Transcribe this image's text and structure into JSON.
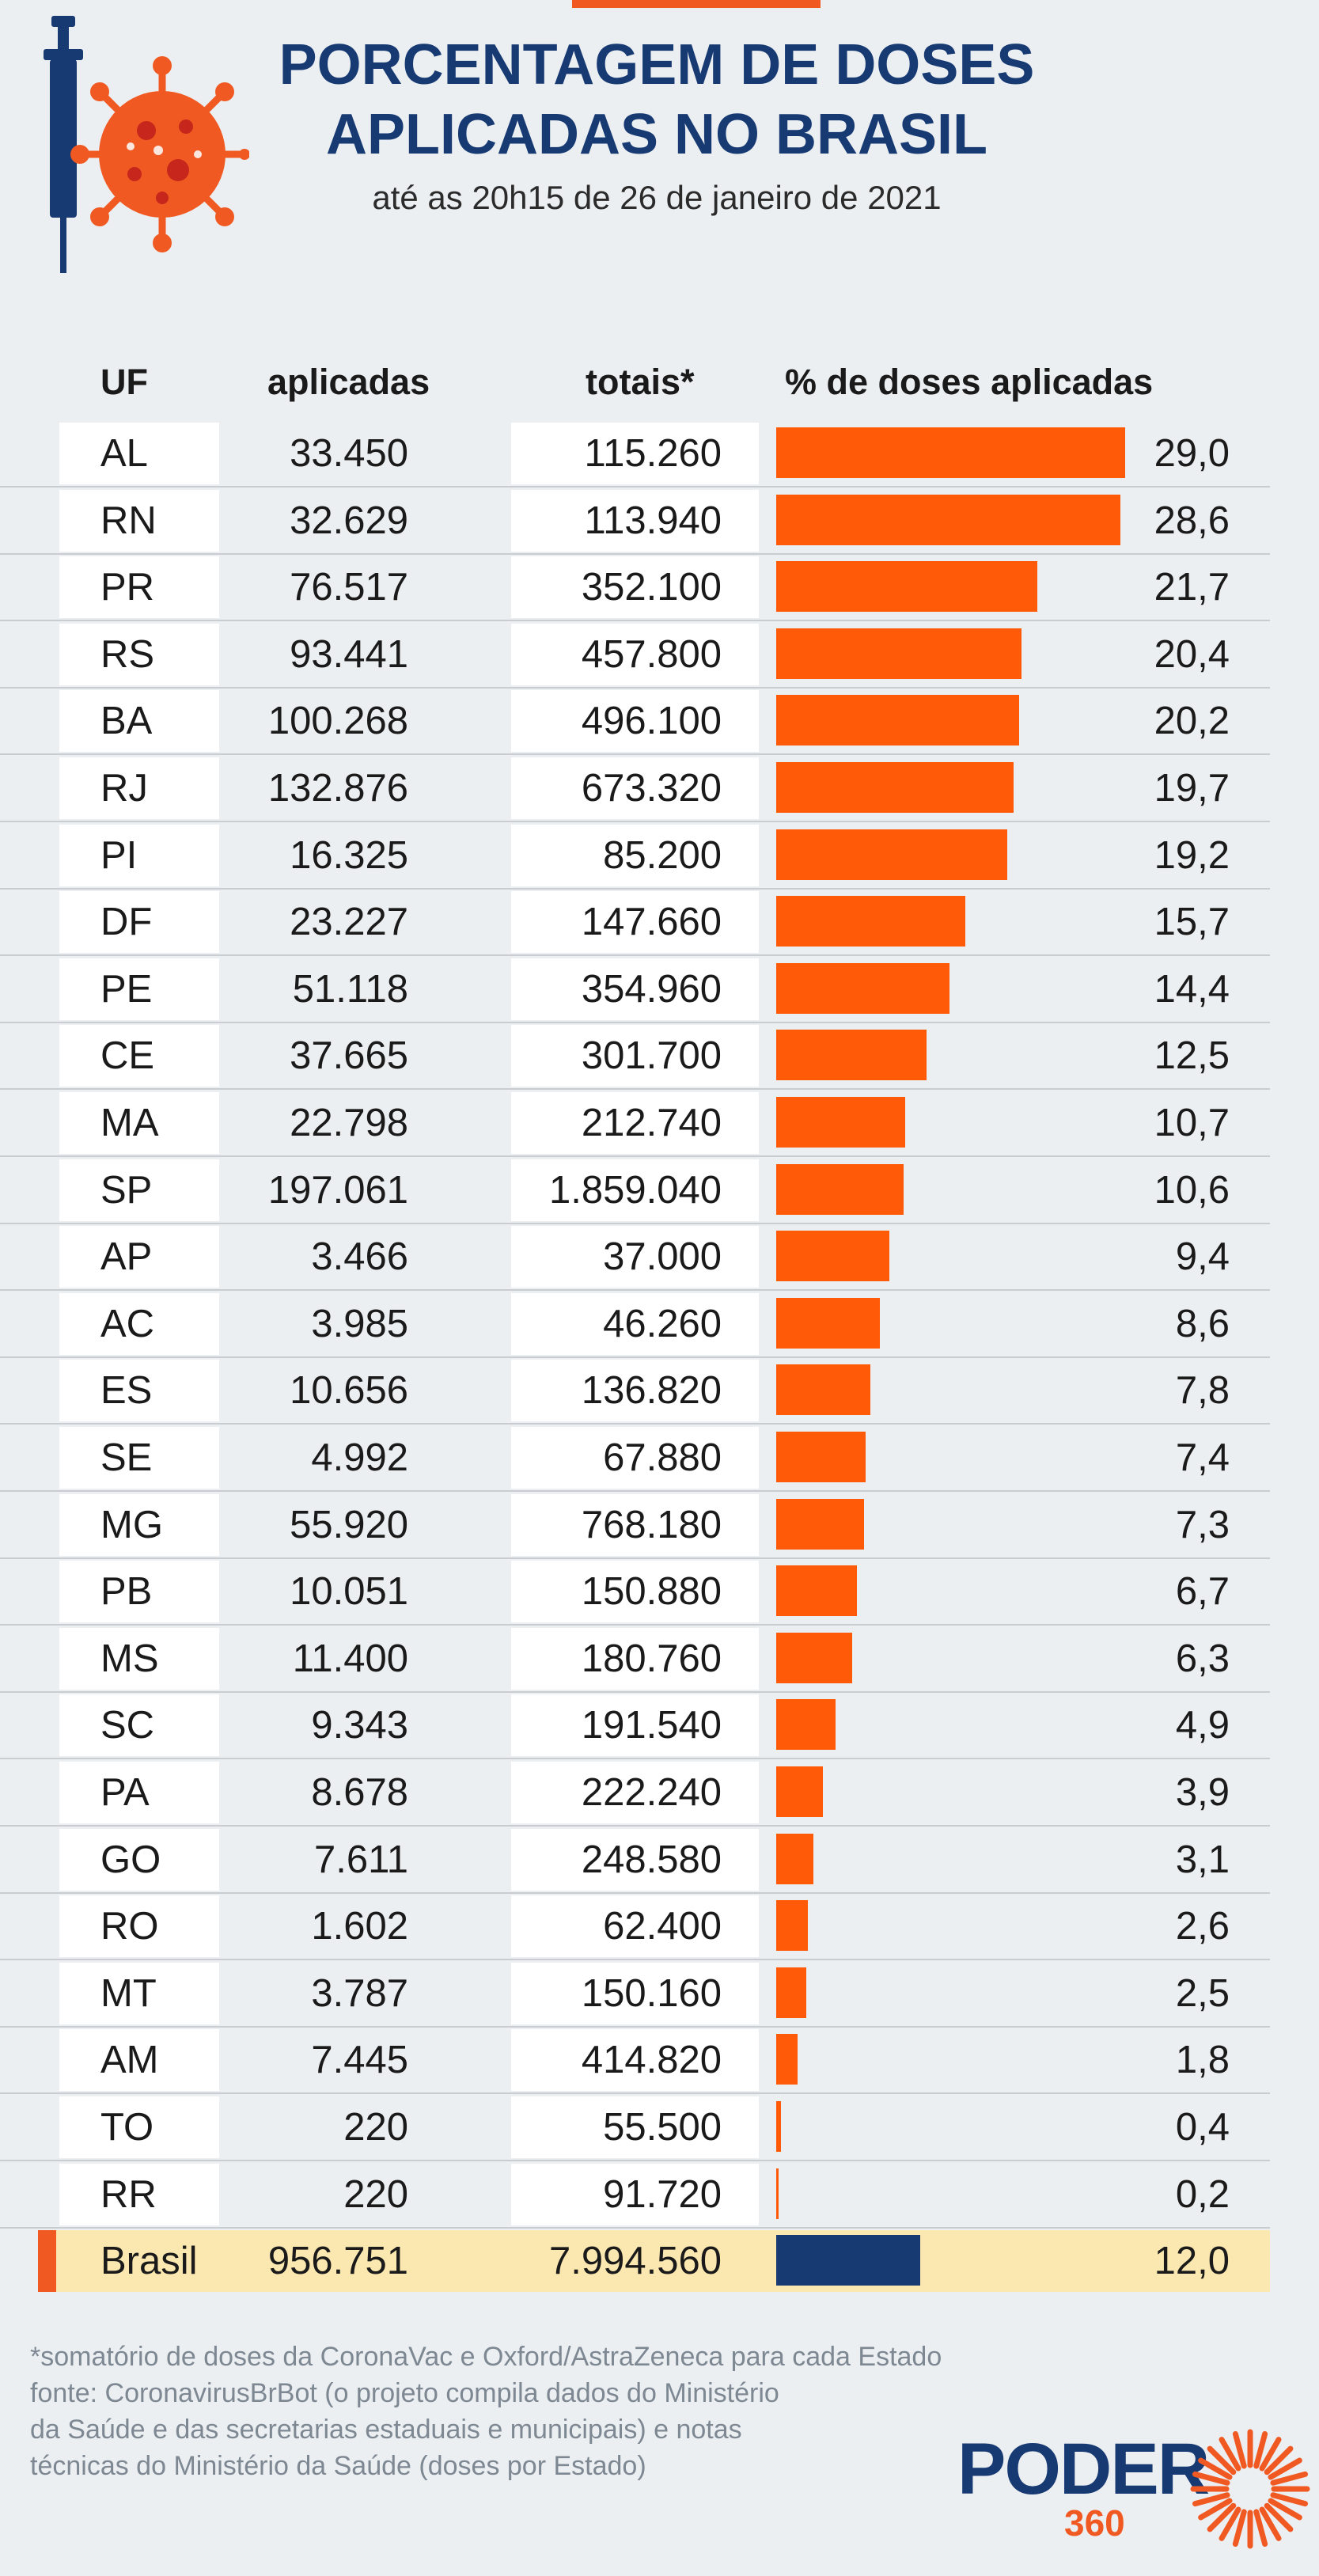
{
  "title": {
    "line1": "PORCENTAGEM DE DOSES",
    "line2": "APLICADAS NO BRASIL",
    "subtitle": "até as 20h15 de 26 de janeiro de 2021"
  },
  "colors": {
    "accent": "#f05a22",
    "bar": "#fe5a08",
    "total_bar": "#173a73",
    "title": "#173a73",
    "highlight": "#fbe8b0"
  },
  "icons": [
    "syringe-icon",
    "virus-icon",
    "sunburst-icon"
  ],
  "chart_data": {
    "type": "bar",
    "orientation": "horizontal",
    "columns": {
      "uf": "UF",
      "aplicadas": "aplicadas",
      "totais": "totais*",
      "pct": "% de doses aplicadas"
    },
    "xlim": [
      0,
      29
    ],
    "rows": [
      {
        "uf": "AL",
        "aplicadas": "33.450",
        "totais": "115.260",
        "pct": 29.0,
        "pct_label": "29,0"
      },
      {
        "uf": "RN",
        "aplicadas": "32.629",
        "totais": "113.940",
        "pct": 28.6,
        "pct_label": "28,6"
      },
      {
        "uf": "PR",
        "aplicadas": "76.517",
        "totais": "352.100",
        "pct": 21.7,
        "pct_label": "21,7"
      },
      {
        "uf": "RS",
        "aplicadas": "93.441",
        "totais": "457.800",
        "pct": 20.4,
        "pct_label": "20,4"
      },
      {
        "uf": "BA",
        "aplicadas": "100.268",
        "totais": "496.100",
        "pct": 20.2,
        "pct_label": "20,2"
      },
      {
        "uf": "RJ",
        "aplicadas": "132.876",
        "totais": "673.320",
        "pct": 19.7,
        "pct_label": "19,7"
      },
      {
        "uf": "PI",
        "aplicadas": "16.325",
        "totais": "85.200",
        "pct": 19.2,
        "pct_label": "19,2"
      },
      {
        "uf": "DF",
        "aplicadas": "23.227",
        "totais": "147.660",
        "pct": 15.7,
        "pct_label": "15,7"
      },
      {
        "uf": "PE",
        "aplicadas": "51.118",
        "totais": "354.960",
        "pct": 14.4,
        "pct_label": "14,4"
      },
      {
        "uf": "CE",
        "aplicadas": "37.665",
        "totais": "301.700",
        "pct": 12.5,
        "pct_label": "12,5"
      },
      {
        "uf": "MA",
        "aplicadas": "22.798",
        "totais": "212.740",
        "pct": 10.7,
        "pct_label": "10,7"
      },
      {
        "uf": "SP",
        "aplicadas": "197.061",
        "totais": "1.859.040",
        "pct": 10.6,
        "pct_label": "10,6"
      },
      {
        "uf": "AP",
        "aplicadas": "3.466",
        "totais": "37.000",
        "pct": 9.4,
        "pct_label": "9,4"
      },
      {
        "uf": "AC",
        "aplicadas": "3.985",
        "totais": "46.260",
        "pct": 8.6,
        "pct_label": "8,6"
      },
      {
        "uf": "ES",
        "aplicadas": "10.656",
        "totais": "136.820",
        "pct": 7.8,
        "pct_label": "7,8"
      },
      {
        "uf": "SE",
        "aplicadas": "4.992",
        "totais": "67.880",
        "pct": 7.4,
        "pct_label": "7,4"
      },
      {
        "uf": "MG",
        "aplicadas": "55.920",
        "totais": "768.180",
        "pct": 7.3,
        "pct_label": "7,3"
      },
      {
        "uf": "PB",
        "aplicadas": "10.051",
        "totais": "150.880",
        "pct": 6.7,
        "pct_label": "6,7"
      },
      {
        "uf": "MS",
        "aplicadas": "11.400",
        "totais": "180.760",
        "pct": 6.3,
        "pct_label": "6,3"
      },
      {
        "uf": "SC",
        "aplicadas": "9.343",
        "totais": "191.540",
        "pct": 4.9,
        "pct_label": "4,9"
      },
      {
        "uf": "PA",
        "aplicadas": "8.678",
        "totais": "222.240",
        "pct": 3.9,
        "pct_label": "3,9"
      },
      {
        "uf": "GO",
        "aplicadas": "7.611",
        "totais": "248.580",
        "pct": 3.1,
        "pct_label": "3,1"
      },
      {
        "uf": "RO",
        "aplicadas": "1.602",
        "totais": "62.400",
        "pct": 2.6,
        "pct_label": "2,6"
      },
      {
        "uf": "MT",
        "aplicadas": "3.787",
        "totais": "150.160",
        "pct": 2.5,
        "pct_label": "2,5"
      },
      {
        "uf": "AM",
        "aplicadas": "7.445",
        "totais": "414.820",
        "pct": 1.8,
        "pct_label": "1,8"
      },
      {
        "uf": "TO",
        "aplicadas": "220",
        "totais": "55.500",
        "pct": 0.4,
        "pct_label": "0,4"
      },
      {
        "uf": "RR",
        "aplicadas": "220",
        "totais": "91.720",
        "pct": 0.2,
        "pct_label": "0,2"
      }
    ],
    "total": {
      "uf": "Brasil",
      "aplicadas": "956.751",
      "totais": "7.994.560",
      "pct": 12.0,
      "pct_label": "12,0"
    }
  },
  "footnote": {
    "line1": "*somatório de doses da CoronaVac e Oxford/AstraZeneca para cada Estado",
    "line2": "fonte: CoronavirusBrBot (o projeto compila dados do Ministério",
    "line3": "da Saúde e das secretarias estaduais e municipais) e notas",
    "line4": "técnicas do Ministério da Saúde (doses por Estado)"
  },
  "brand": {
    "name": "PODER",
    "number": "360"
  }
}
